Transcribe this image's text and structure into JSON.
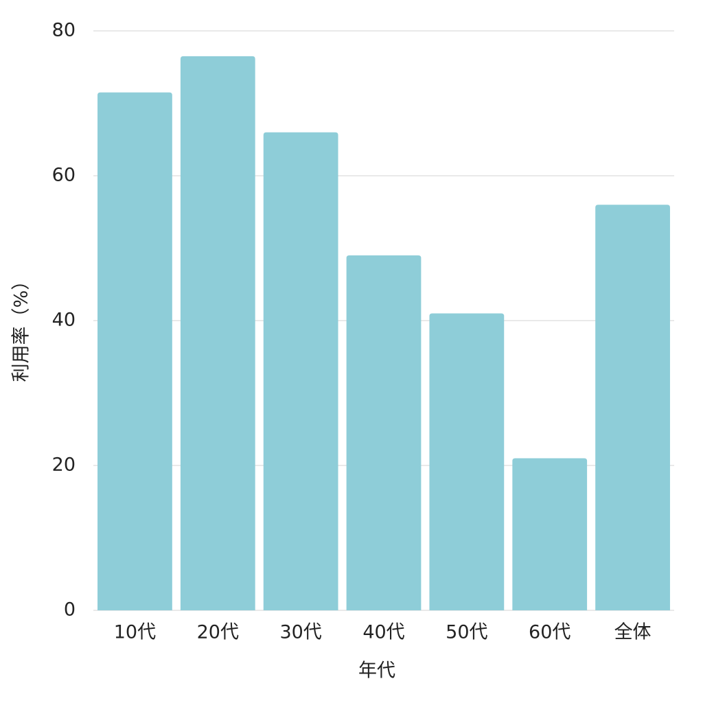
{
  "chart_data": {
    "type": "bar",
    "categories": [
      "10代",
      "20代",
      "30代",
      "40代",
      "50代",
      "60代",
      "全体"
    ],
    "values": [
      71.5,
      76.5,
      66,
      49,
      41,
      21,
      56
    ],
    "color": "#8ecdd8",
    "xlabel": "年代",
    "ylabel": "利用率（%）",
    "ylim": [
      0,
      80
    ],
    "yticks": [
      0,
      20,
      40,
      60,
      80
    ],
    "grid": true
  }
}
